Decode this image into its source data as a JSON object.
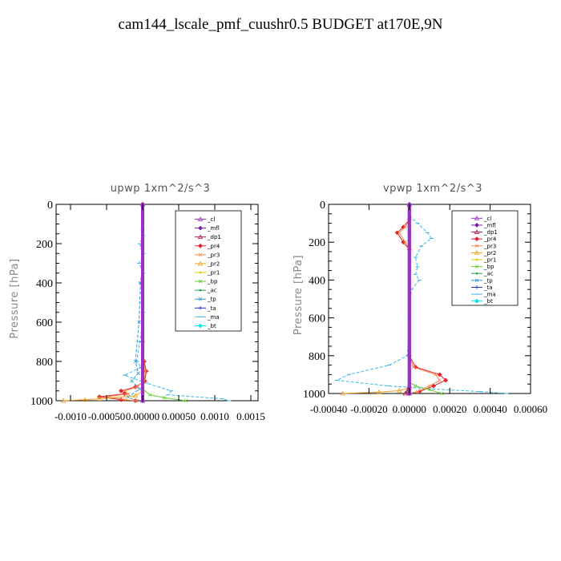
{
  "title": "cam144_lscale_pmf_cuushr0.5  BUDGET at170E,9N",
  "legend_entries": [
    {
      "label": "_cl",
      "color": "#9b30c8",
      "marker": "tri"
    },
    {
      "label": "_mfl",
      "color": "#7a1fa2",
      "marker": "diamond"
    },
    {
      "label": "_dp1",
      "color": "#b5174b",
      "marker": "tri"
    },
    {
      "label": "_pr4",
      "color": "#e8202a",
      "marker": "diamond"
    },
    {
      "label": "_pr3",
      "color": "#f08a4b",
      "marker": "x"
    },
    {
      "label": "_pr2",
      "color": "#f0a020",
      "marker": "tri"
    },
    {
      "label": "_pr1",
      "color": "#e8c800",
      "marker": "dot"
    },
    {
      "label": "_bp",
      "color": "#66cc33",
      "marker": "x"
    },
    {
      "label": "_ac",
      "color": "#2aa84a",
      "marker": "dot"
    },
    {
      "label": "_tp",
      "color": "#2a9bd0",
      "marker": "x"
    },
    {
      "label": "_ta",
      "color": "#1a2fd0",
      "marker": "plus"
    },
    {
      "label": "_ma",
      "color": "#40b8e8",
      "marker": "dash"
    },
    {
      "label": "_bt",
      "color": "#00e5ee",
      "marker": "diamond"
    }
  ],
  "chart_data": [
    {
      "type": "line",
      "title": "upwp   1xm^2/s^3",
      "ylabel": "Pressure [hPa]",
      "xlabel": "",
      "xlim": [
        -0.0012,
        0.0016
      ],
      "ylim": [
        1000,
        0
      ],
      "xticks": [
        -0.001,
        -0.0005,
        0.0,
        0.0005,
        0.001,
        0.0015
      ],
      "xtick_labels": [
        "-0.0010",
        "-0.00050",
        "0.00000",
        "0.00050",
        "0.0010",
        "0.0015"
      ],
      "yticks": [
        0,
        200,
        400,
        600,
        800,
        1000
      ],
      "ytick_labels": [
        "0",
        "200",
        "400",
        "600",
        "800",
        "1000"
      ],
      "series": [
        {
          "name": "_ma",
          "x": [
            0,
            1e-05,
            -4e-05,
            2e-05,
            -5e-05,
            1e-05,
            -3e-05,
            0,
            -2e-05,
            1e-05,
            0,
            -4e-05,
            -8e-05,
            -2e-05,
            -0.00025,
            5e-05,
            0.0004,
            0.00035,
            0.0011,
            0.0012
          ],
          "y": [
            130,
            160,
            200,
            250,
            300,
            350,
            400,
            450,
            500,
            550,
            600,
            700,
            800,
            830,
            870,
            910,
            950,
            970,
            990,
            1000
          ]
        },
        {
          "name": "_tp",
          "x": [
            0,
            -1e-05,
            0,
            -3e-05,
            -5e-05,
            -0.0001,
            -6e-05,
            -0.00015,
            -4e-05,
            -0.0002,
            -0.0001
          ],
          "y": [
            150,
            220,
            300,
            400,
            600,
            800,
            860,
            900,
            940,
            980,
            1000
          ]
        },
        {
          "name": "_pr4",
          "x": [
            0,
            0,
            2e-05,
            5e-05,
            3e-05,
            -0.0001,
            -0.0003,
            -0.00025,
            -0.0006,
            -0.0003,
            -0.0001
          ],
          "y": [
            0,
            700,
            800,
            850,
            900,
            930,
            950,
            965,
            980,
            995,
            1000
          ]
        },
        {
          "name": "_pr3",
          "x": [
            0,
            0,
            1e-05,
            4e-05,
            2e-05,
            -8e-05,
            -0.00025,
            -0.0002,
            -0.0005,
            -0.00025,
            -8e-05
          ],
          "y": [
            0,
            700,
            800,
            850,
            900,
            930,
            950,
            965,
            980,
            995,
            1000
          ]
        },
        {
          "name": "_pr2",
          "x": [
            0,
            0,
            -0.0001,
            -0.0006,
            -0.0008,
            -0.0011
          ],
          "y": [
            0,
            950,
            975,
            990,
            995,
            1000
          ]
        },
        {
          "name": "_bp",
          "x": [
            0,
            0,
            0.0001,
            0.0003,
            0.0006
          ],
          "y": [
            0,
            940,
            970,
            985,
            1000
          ]
        },
        {
          "name": "_mfl",
          "x": [
            0,
            0
          ],
          "y": [
            0,
            1000
          ]
        },
        {
          "name": "_cl",
          "x": [
            0,
            0
          ],
          "y": [
            0,
            1000
          ]
        }
      ]
    },
    {
      "type": "line",
      "title": "vpwp   1xm^2/s^3",
      "ylabel": "Pressure [hPa]",
      "xlabel": "",
      "xlim": [
        -0.0004,
        0.0006
      ],
      "ylim": [
        1000,
        0
      ],
      "xticks": [
        -0.0004,
        -0.0002,
        0.0,
        0.0002,
        0.0004,
        0.0006
      ],
      "xtick_labels": [
        "-0.00040",
        "-0.00020",
        "0.00000",
        "0.00020",
        "0.00040",
        "0.00060"
      ],
      "yticks": [
        0,
        200,
        400,
        600,
        800,
        1000
      ],
      "ytick_labels": [
        "0",
        "200",
        "400",
        "600",
        "800",
        "1000"
      ],
      "series": [
        {
          "name": "_ma",
          "x": [
            0,
            4e-05,
            9e-05,
            0.00011,
            6e-05,
            3e-05,
            4e-05,
            3e-05,
            5e-05,
            1e-05,
            0,
            -1e-05,
            -0.0001,
            -0.0003,
            -0.00036,
            -0.0001,
            0.0001,
            0.00035,
            0.00048
          ],
          "y": [
            60,
            100,
            150,
            180,
            220,
            280,
            330,
            370,
            400,
            450,
            600,
            800,
            850,
            900,
            930,
            960,
            975,
            990,
            1000
          ]
        },
        {
          "name": "_pr4",
          "x": [
            0,
            -3e-05,
            -6e-05,
            -3e-05,
            0,
            0,
            3e-05,
            0.00015,
            0.00018,
            0.00012,
            5e-05,
            0
          ],
          "y": [
            80,
            120,
            150,
            200,
            240,
            800,
            860,
            900,
            930,
            960,
            990,
            1000
          ]
        },
        {
          "name": "_pr3",
          "x": [
            0,
            -2e-05,
            -5e-05,
            -2e-05,
            0,
            0,
            2e-05,
            0.00013,
            0.00015,
            0.0001,
            4e-05,
            0
          ],
          "y": [
            80,
            120,
            150,
            200,
            240,
            800,
            860,
            900,
            930,
            960,
            990,
            1000
          ]
        },
        {
          "name": "_pr2",
          "x": [
            0,
            0,
            -5e-05,
            -0.00015,
            -0.00033
          ],
          "y": [
            0,
            970,
            985,
            993,
            1000
          ]
        },
        {
          "name": "_bp",
          "x": [
            0,
            0,
            3e-05,
            0.0001,
            0.00016
          ],
          "y": [
            0,
            940,
            960,
            980,
            1000
          ]
        },
        {
          "name": "_dp1",
          "x": [
            0,
            0,
            -1e-05,
            -2e-05
          ],
          "y": [
            0,
            960,
            985,
            1000
          ]
        },
        {
          "name": "_mfl",
          "x": [
            0,
            0
          ],
          "y": [
            0,
            1000
          ]
        },
        {
          "name": "_cl",
          "x": [
            0,
            0
          ],
          "y": [
            0,
            1000
          ]
        }
      ]
    }
  ]
}
